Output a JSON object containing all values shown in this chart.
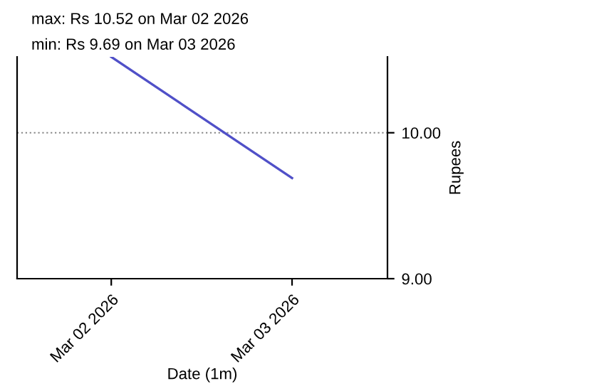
{
  "chart_data": {
    "type": "line",
    "xlabel": "Date (1m)",
    "ylabel": "Rupees",
    "annotations": [
      "max: Rs 10.52 on Mar 02 2026",
      "min: Rs 9.69 on Mar 03 2026"
    ],
    "x": [
      "2026-03-02",
      "2026-03-03"
    ],
    "series": [
      {
        "color": "#5050c8",
        "values": [
          10.52,
          9.69
        ]
      }
    ],
    "xlim": [
      "2026-03-01T11:30",
      "2026-03-03T12:40"
    ],
    "xticks": [
      {
        "value": "2026-03-02",
        "label": "Mar 02 2026"
      },
      {
        "value": "2026-03-03",
        "label": "Mar 03 2026"
      }
    ],
    "ylim": [
      9.0,
      10.52
    ],
    "yticks": [
      {
        "value": 9.0,
        "label": "9.00"
      },
      {
        "value": 10.0,
        "label": "10.00"
      }
    ],
    "grid": "y",
    "line_style": "solid",
    "marker": "none"
  }
}
